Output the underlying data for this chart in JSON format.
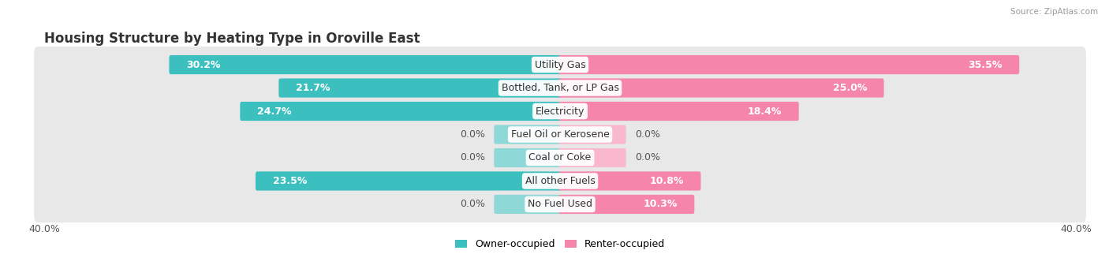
{
  "title": "Housing Structure by Heating Type in Oroville East",
  "source": "Source: ZipAtlas.com",
  "categories": [
    "Utility Gas",
    "Bottled, Tank, or LP Gas",
    "Electricity",
    "Fuel Oil or Kerosene",
    "Coal or Coke",
    "All other Fuels",
    "No Fuel Used"
  ],
  "owner_values": [
    30.2,
    21.7,
    24.7,
    0.0,
    0.0,
    23.5,
    0.0
  ],
  "renter_values": [
    35.5,
    25.0,
    18.4,
    0.0,
    0.0,
    10.8,
    10.3
  ],
  "owner_color": "#3bbfbf",
  "renter_color": "#f585ab",
  "owner_color_light": "#8ed8d8",
  "renter_color_light": "#f9b8ce",
  "row_bg_color": "#ebebeb",
  "row_bg_alt_color": "#f5f5f5",
  "xlim": 40.0,
  "bar_height": 0.58,
  "title_fontsize": 12,
  "label_fontsize": 9,
  "value_fontsize": 9,
  "tick_fontsize": 9,
  "legend_fontsize": 9,
  "small_bar_width": 5.0
}
